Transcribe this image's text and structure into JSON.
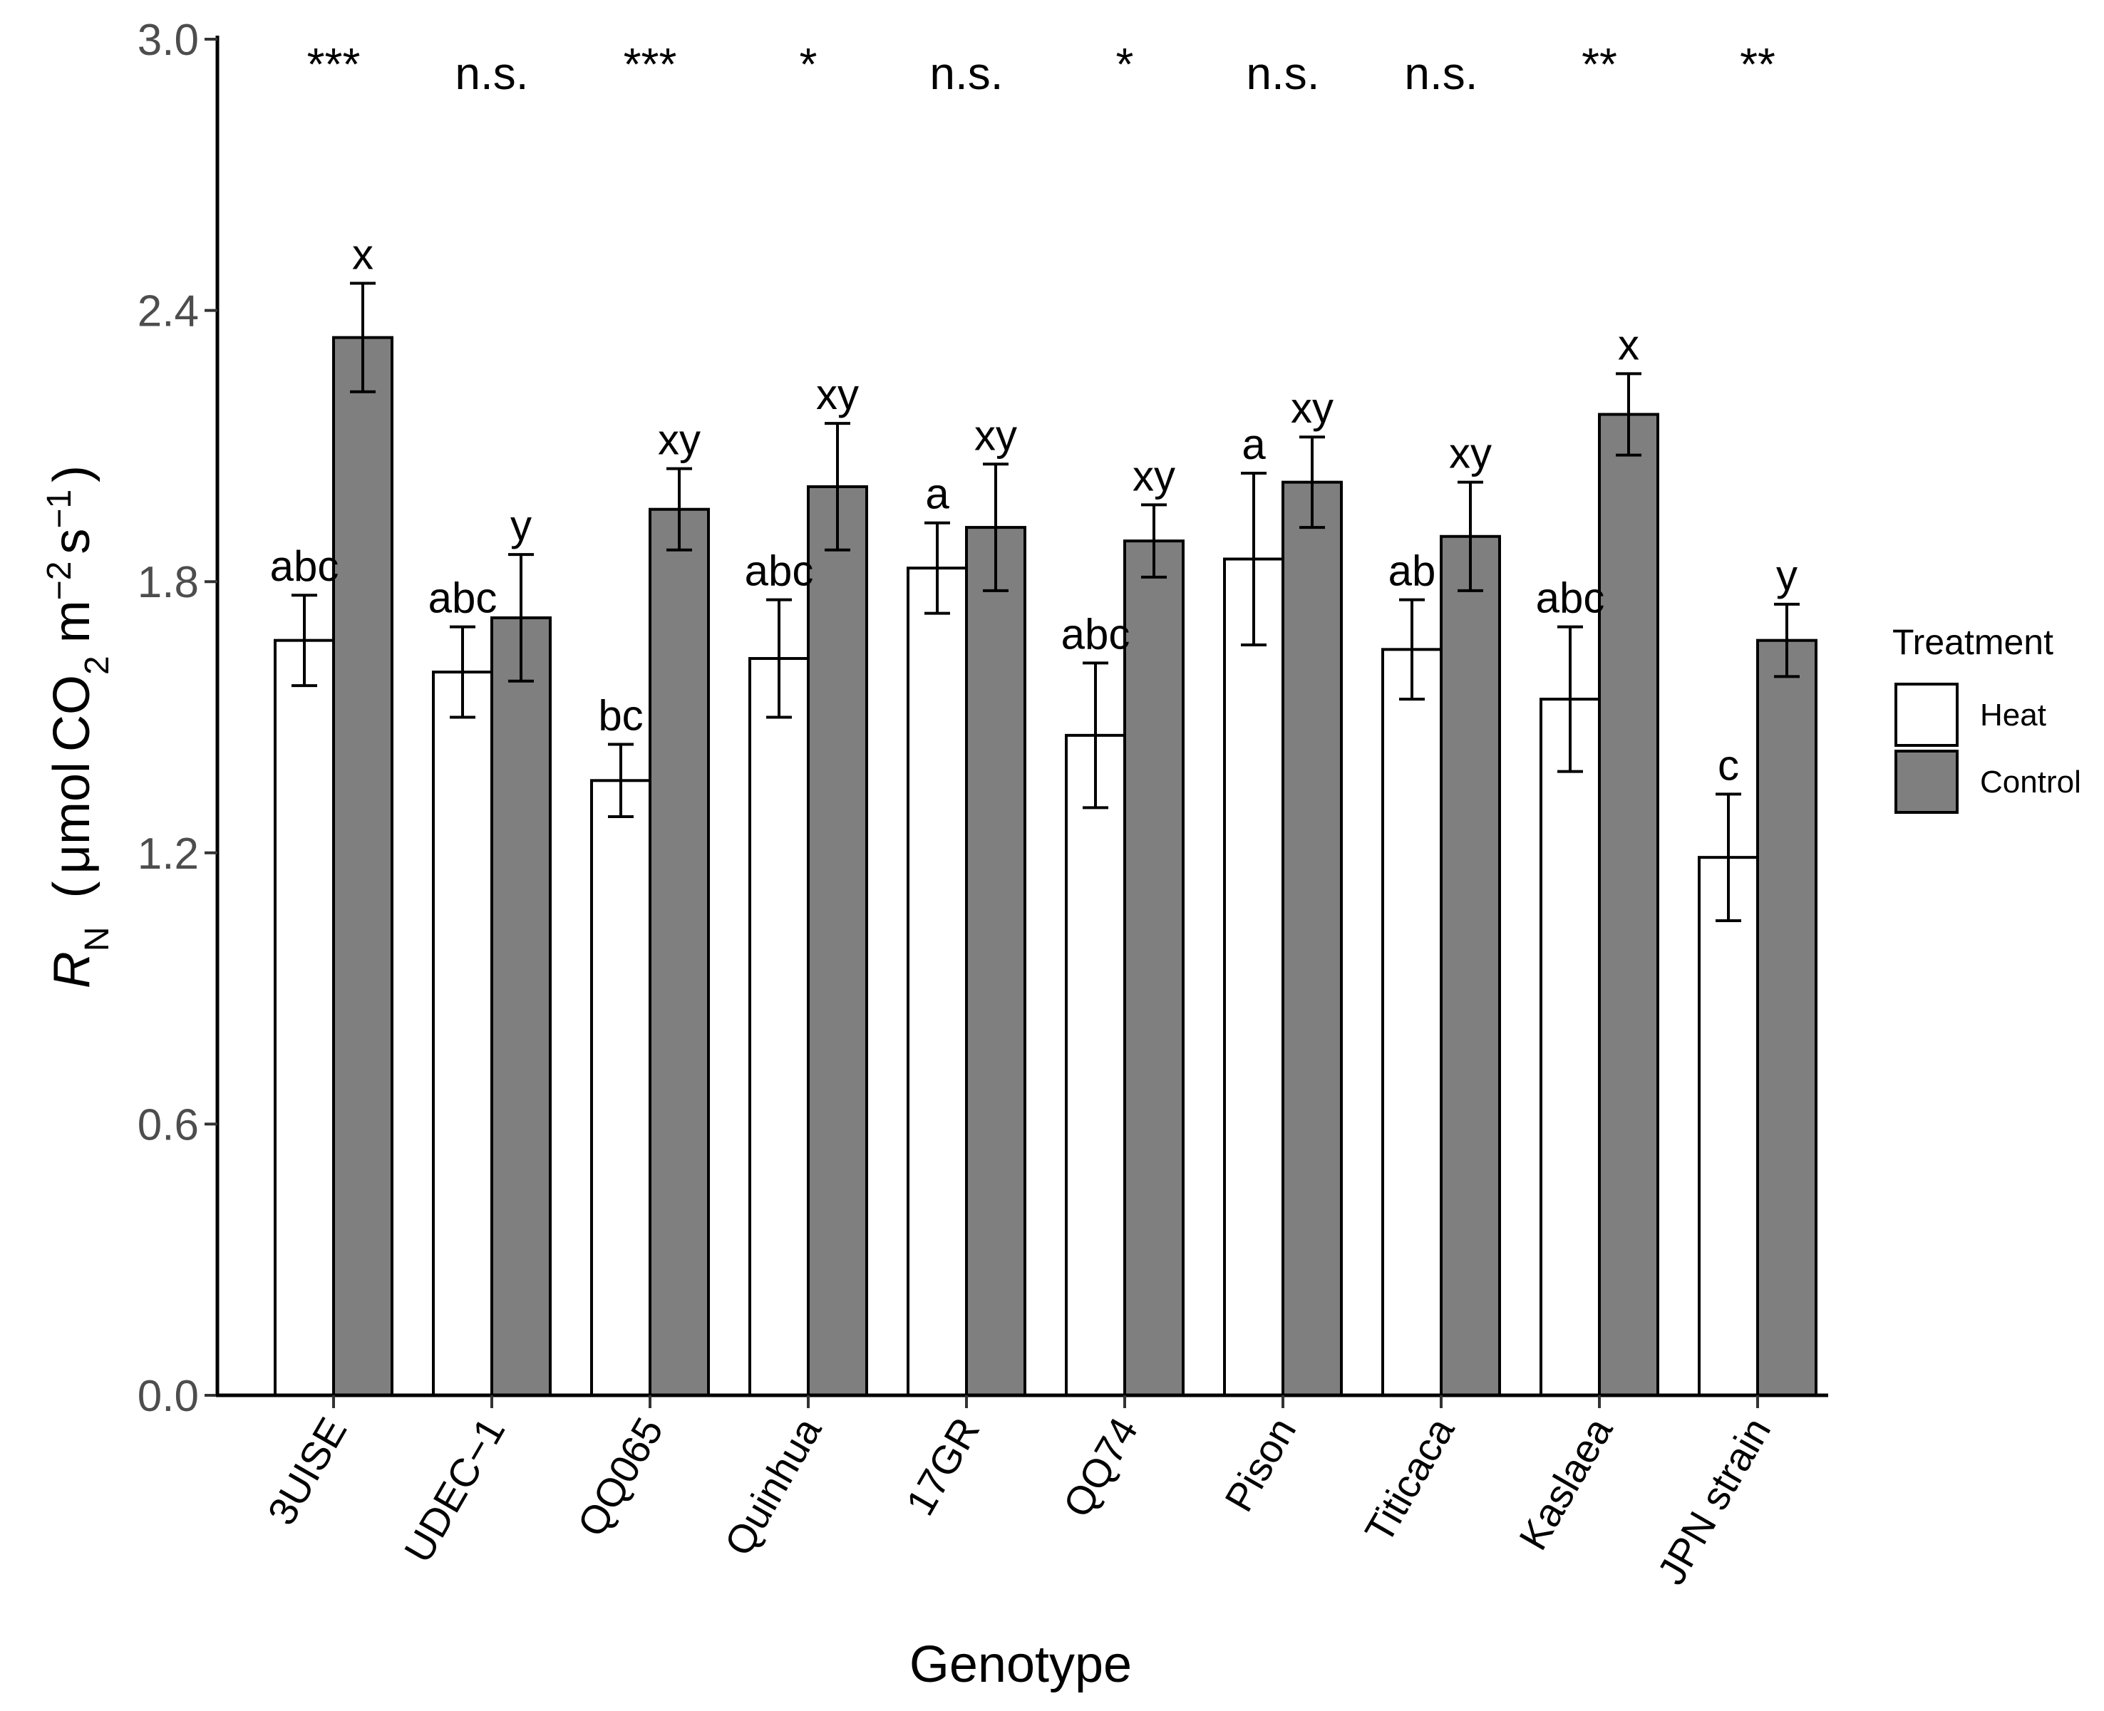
{
  "chart_data": {
    "type": "bar",
    "title": "",
    "xlabel": "Genotype",
    "ylabel": {
      "symbol": "R",
      "symbol_sub": "N",
      "unit_open": "(",
      "unit_mu": "μ",
      "unit_mol": "mol",
      "unit_co": "CO",
      "unit_co_sub": "2",
      "unit_m": "m",
      "unit_m_sup": "−2",
      "unit_s": "s",
      "unit_s_sup": "−1",
      "unit_close": ")"
    },
    "ylim": [
      0,
      3.0
    ],
    "yticks": [
      "0.0",
      "0.6",
      "1.2",
      "1.8",
      "2.4",
      "3.0"
    ],
    "yticks_values": [
      0,
      0.6,
      1.2,
      1.8,
      2.4,
      3.0
    ],
    "categories": [
      "3UISE",
      "UDEC−1",
      "QQ065",
      "Quinhua",
      "17GR",
      "QQ74",
      "Pison",
      "Titicaca",
      "Kaslaea",
      "JPN strain"
    ],
    "series": [
      {
        "name": "Heat",
        "color": "#ffffff",
        "values": [
          1.67,
          1.6,
          1.36,
          1.63,
          1.83,
          1.46,
          1.85,
          1.65,
          1.54,
          1.19
        ],
        "errors": [
          0.1,
          0.1,
          0.08,
          0.13,
          0.1,
          0.16,
          0.19,
          0.11,
          0.16,
          0.14
        ],
        "letters": [
          "abc",
          "abc",
          "bc",
          "abc",
          "a",
          "abc",
          "a",
          "ab",
          "abc",
          "c"
        ]
      },
      {
        "name": "Control",
        "color": "#7f7f7f",
        "values": [
          2.34,
          1.72,
          1.96,
          2.01,
          1.92,
          1.89,
          2.02,
          1.9,
          2.17,
          1.67
        ],
        "errors": [
          0.12,
          0.14,
          0.09,
          0.14,
          0.14,
          0.08,
          0.1,
          0.12,
          0.09,
          0.08
        ],
        "letters": [
          "x",
          "y",
          "xy",
          "xy",
          "xy",
          "xy",
          "xy",
          "xy",
          "x",
          "y"
        ]
      }
    ],
    "significance": [
      "***",
      "n.s.",
      "***",
      "*",
      "n.s.",
      "*",
      "n.s.",
      "n.s.",
      "**",
      "**"
    ],
    "legend": {
      "title": "Treatment",
      "position": "right",
      "labels": [
        "Heat",
        "Control"
      ]
    },
    "grid": false
  }
}
